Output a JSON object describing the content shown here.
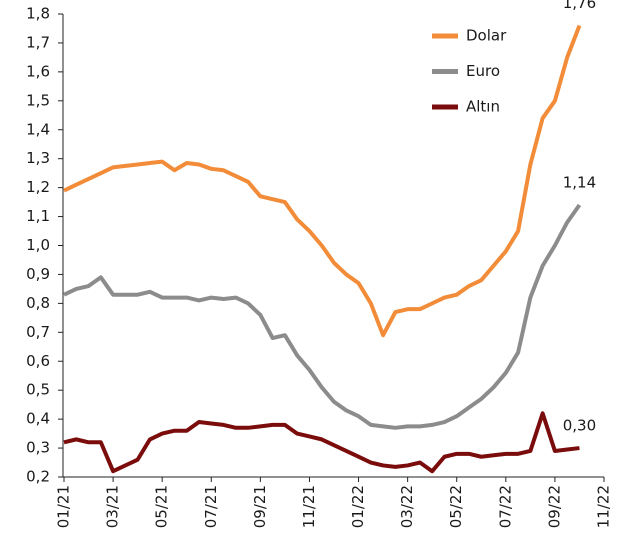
{
  "chart_data": {
    "type": "line",
    "categories": [
      "01/21",
      null,
      null,
      null,
      "03/21",
      null,
      null,
      null,
      "05/21",
      null,
      null,
      null,
      "07/21",
      null,
      null,
      null,
      "09/21",
      null,
      null,
      null,
      "11/21",
      null,
      null,
      null,
      "01/22",
      null,
      null,
      null,
      "03/22",
      null,
      null,
      null,
      "05/22",
      null,
      null,
      null,
      "07/22",
      null,
      null,
      null,
      "09/22",
      null,
      null,
      null,
      "11/22"
    ],
    "series": [
      {
        "name": "Dolar",
        "color": "#f28c38",
        "values": [
          1.19,
          1.21,
          1.23,
          1.25,
          1.27,
          1.275,
          1.28,
          1.285,
          1.29,
          1.26,
          1.285,
          1.28,
          1.265,
          1.26,
          1.24,
          1.22,
          1.17,
          1.16,
          1.15,
          1.09,
          1.05,
          1.0,
          0.94,
          0.9,
          0.87,
          0.8,
          0.69,
          0.77,
          0.78,
          0.78,
          0.8,
          0.82,
          0.83,
          0.86,
          0.88,
          0.93,
          0.98,
          1.05,
          1.28,
          1.44,
          1.5,
          1.65,
          1.76,
          null,
          null
        ],
        "value_labels": [
          null,
          null,
          null,
          null,
          null,
          null,
          null,
          null,
          null,
          null,
          null,
          null,
          null,
          null,
          null,
          null,
          null,
          null,
          null,
          null,
          null,
          null,
          null,
          null,
          null,
          null,
          null,
          null,
          null,
          null,
          null,
          null,
          null,
          null,
          null,
          null,
          null,
          null,
          null,
          null,
          null,
          null,
          "1,76",
          null,
          null
        ]
      },
      {
        "name": "Euro",
        "color": "#8c8c8c",
        "values": [
          0.83,
          0.85,
          0.86,
          0.89,
          0.83,
          0.83,
          0.83,
          0.84,
          0.82,
          0.82,
          0.82,
          0.81,
          0.82,
          0.815,
          0.82,
          0.8,
          0.76,
          0.68,
          0.69,
          0.62,
          0.57,
          0.51,
          0.46,
          0.43,
          0.41,
          0.38,
          0.375,
          0.37,
          0.375,
          0.375,
          0.38,
          0.39,
          0.41,
          0.44,
          0.47,
          0.51,
          0.56,
          0.63,
          0.82,
          0.93,
          1.0,
          1.08,
          1.14,
          null,
          null
        ],
        "value_labels": [
          null,
          null,
          null,
          null,
          null,
          null,
          null,
          null,
          null,
          null,
          null,
          null,
          null,
          null,
          null,
          null,
          null,
          null,
          null,
          null,
          null,
          null,
          null,
          null,
          null,
          null,
          null,
          null,
          null,
          null,
          null,
          null,
          null,
          null,
          null,
          null,
          null,
          null,
          null,
          null,
          null,
          null,
          "1,14",
          null,
          null
        ]
      },
      {
        "name": "Altın",
        "color": "#7b0c0c",
        "values": [
          0.32,
          0.33,
          0.32,
          0.32,
          0.22,
          0.24,
          0.26,
          0.33,
          0.35,
          0.36,
          0.36,
          0.39,
          0.385,
          0.38,
          0.37,
          0.37,
          0.375,
          0.38,
          0.38,
          0.35,
          0.34,
          0.33,
          0.31,
          0.29,
          0.27,
          0.25,
          0.24,
          0.235,
          0.24,
          0.25,
          0.22,
          0.27,
          0.28,
          0.28,
          0.27,
          0.275,
          0.28,
          0.28,
          0.29,
          0.42,
          0.29,
          0.295,
          0.3,
          null,
          null
        ],
        "value_labels": [
          null,
          null,
          null,
          null,
          null,
          null,
          null,
          null,
          null,
          null,
          null,
          null,
          null,
          null,
          null,
          null,
          null,
          null,
          null,
          null,
          null,
          null,
          null,
          null,
          null,
          null,
          null,
          null,
          null,
          null,
          null,
          null,
          null,
          null,
          null,
          null,
          null,
          null,
          null,
          null,
          null,
          null,
          "0,30",
          null,
          null
        ]
      }
    ],
    "ylim": [
      0.2,
      1.8
    ],
    "yticks": [
      {
        "value": 0.2,
        "label": "0,2"
      },
      {
        "value": 0.3,
        "label": "0,3"
      },
      {
        "value": 0.4,
        "label": "0,4"
      },
      {
        "value": 0.5,
        "label": "0,5"
      },
      {
        "value": 0.6,
        "label": "0,6"
      },
      {
        "value": 0.7,
        "label": "0,7"
      },
      {
        "value": 0.8,
        "label": "0,8"
      },
      {
        "value": 0.9,
        "label": "0,9"
      },
      {
        "value": 1.0,
        "label": "1,0"
      },
      {
        "value": 1.1,
        "label": "1,1"
      },
      {
        "value": 1.2,
        "label": "1,2"
      },
      {
        "value": 1.3,
        "label": "1,3"
      },
      {
        "value": 1.4,
        "label": "1,4"
      },
      {
        "value": 1.5,
        "label": "1,5"
      },
      {
        "value": 1.6,
        "label": "1,6"
      },
      {
        "value": 1.7,
        "label": "1,7"
      },
      {
        "value": 1.8,
        "label": "1,8"
      }
    ],
    "grid": false,
    "legend": "upper right"
  }
}
